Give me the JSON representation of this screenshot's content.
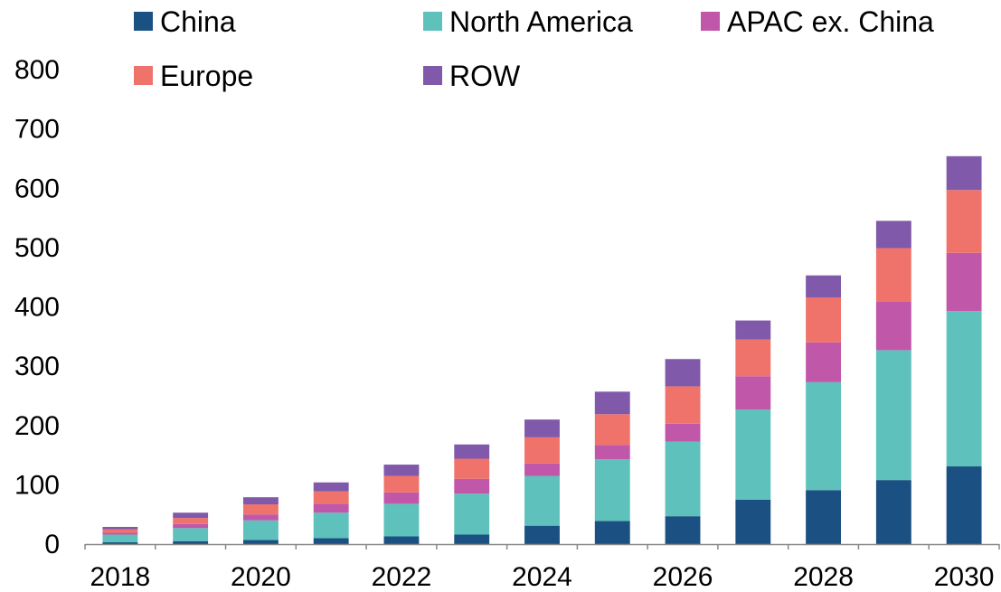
{
  "chart_data": {
    "type": "bar",
    "stacked": true,
    "title": "",
    "xlabel": "",
    "ylabel": "",
    "ylim": [
      0,
      800
    ],
    "yticks": [
      0,
      100,
      200,
      300,
      400,
      500,
      600,
      700,
      800
    ],
    "categories": [
      "2018",
      "2019",
      "2020",
      "2021",
      "2022",
      "2023",
      "2024",
      "2025",
      "2026",
      "2027",
      "2028",
      "2029",
      "2030"
    ],
    "xtick_labels": [
      "2018",
      "2020",
      "2022",
      "2024",
      "2026",
      "2028",
      "2030"
    ],
    "grid": false,
    "legend_position": "top",
    "series": [
      {
        "name": "China",
        "color": "#1b5182",
        "values": [
          3,
          5,
          7,
          10,
          13,
          16,
          31,
          39,
          47,
          75,
          91,
          108,
          131
        ]
      },
      {
        "name": "North America",
        "color": "#5fc1bc",
        "values": [
          13,
          22,
          33,
          43,
          55,
          69,
          84,
          104,
          126,
          152,
          182,
          219,
          262
        ]
      },
      {
        "name": "APAC ex. China",
        "color": "#c157a9",
        "values": [
          3,
          7,
          10,
          15,
          19,
          25,
          21,
          24,
          30,
          56,
          67,
          82,
          98
        ]
      },
      {
        "name": "Europe",
        "color": "#f0736b",
        "values": [
          6,
          10,
          17,
          21,
          28,
          34,
          44,
          52,
          63,
          62,
          76,
          90,
          106
        ]
      },
      {
        "name": "ROW",
        "color": "#8159aa",
        "values": [
          4,
          9,
          12,
          15,
          19,
          24,
          30,
          38,
          46,
          32,
          37,
          46,
          57
        ]
      }
    ]
  }
}
